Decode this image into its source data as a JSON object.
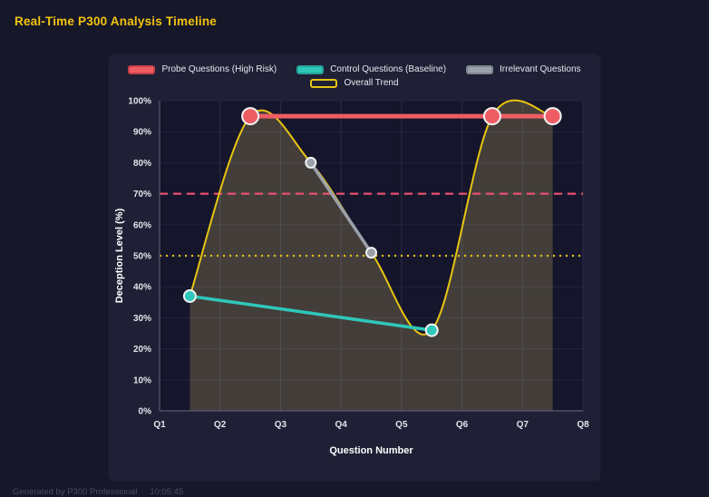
{
  "page": {
    "title": "Real-Time P300 Analysis Timeline",
    "footer": "Generated by P300 Professional",
    "footer_time": "10:05:45"
  },
  "chart_data": {
    "type": "line",
    "title": "Real-Time P300 Analysis Timeline",
    "xlabel": "Question Number",
    "ylabel": "Deception Level (%)",
    "x_ticks": [
      "Q1",
      "Q2",
      "Q3",
      "Q4",
      "Q5",
      "Q6",
      "Q7",
      "Q8"
    ],
    "x_range": [
      1,
      8
    ],
    "ylim": [
      0,
      100
    ],
    "y_tick_step": 10,
    "grid": true,
    "legend_position": "top",
    "plot_bg": "#15152b",
    "grid_color_v": "#2b2b47",
    "grid_color_h": "#242440",
    "axis_color": "#5a5a72",
    "tick_color": "#e4e4ec",
    "marker_border": "#f2f2f2",
    "series": [
      {
        "name": "Probe Questions (High Risk)",
        "color": "#ef5d64",
        "swatch_fill": "#ef5d64",
        "swatch_border": "#c9414a",
        "width": 5,
        "marker_r": 9,
        "x": [
          2.5,
          6.5,
          7.5
        ],
        "values": [
          95,
          95,
          95
        ]
      },
      {
        "name": "Control Questions (Baseline)",
        "color": "#2fc7ba",
        "swatch_fill": "#2fc7ba",
        "swatch_border": "#22a396",
        "width": 3.5,
        "marker_r": 6.5,
        "x": [
          1.5,
          5.5
        ],
        "values": [
          37,
          26
        ]
      },
      {
        "name": "Irrelevant Questions",
        "color": "#9aa1aa",
        "swatch_fill": "#9aa1aa",
        "swatch_border": "#7e858e",
        "width": 3.5,
        "marker_r": 5.5,
        "x": [
          3.5,
          4.5
        ],
        "values": [
          80,
          51
        ]
      },
      {
        "name": "Overall Trend",
        "color": "#e7c412",
        "swatch_fill": "transparent",
        "swatch_border": "#e7c412",
        "width": 2,
        "smooth": true,
        "fill": "rgba(231,211,116,0.22)",
        "x": [
          1.5,
          2.5,
          3.5,
          4.5,
          5.5,
          6.5,
          7.5
        ],
        "values": [
          37,
          95,
          80,
          51,
          26,
          95,
          95
        ]
      }
    ],
    "threshold_lines": [
      {
        "value": 70,
        "color": "#e8506e",
        "style": "dashed"
      },
      {
        "value": 50,
        "color": "#e7c412",
        "style": "dotted"
      }
    ]
  }
}
